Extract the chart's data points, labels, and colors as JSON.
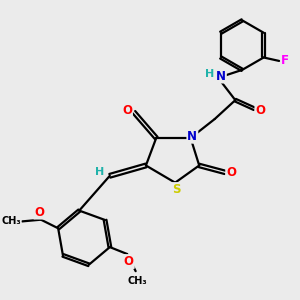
{
  "background_color": "#ebebeb",
  "atom_colors": {
    "C": "#000000",
    "H": "#20b2aa",
    "N": "#0000cd",
    "O": "#ff0000",
    "S": "#cccc00",
    "F": "#ff00ff"
  },
  "bond_color": "#000000",
  "bond_width": 1.6,
  "font_size_atom": 8.5
}
